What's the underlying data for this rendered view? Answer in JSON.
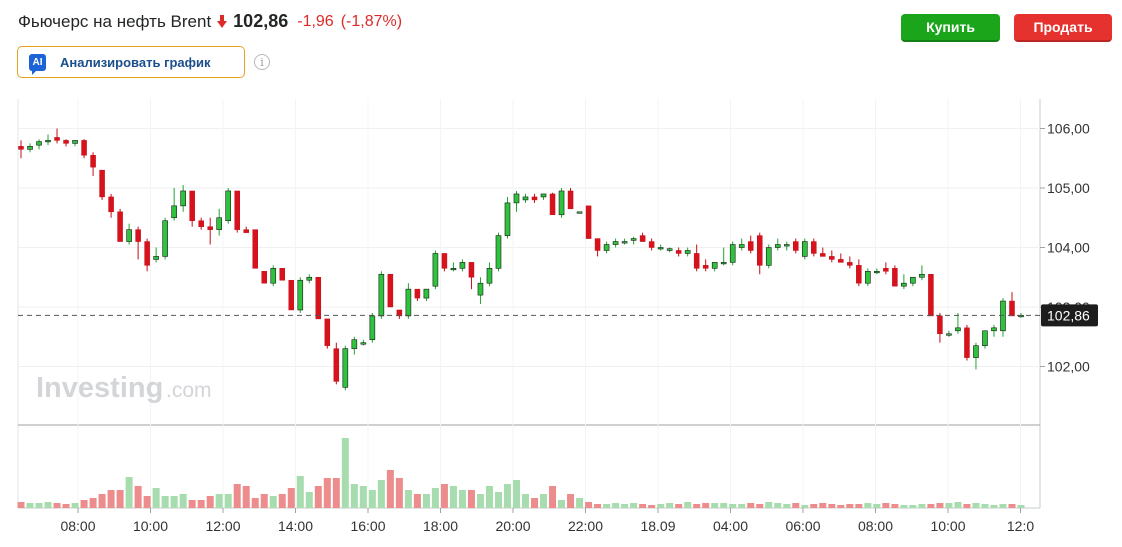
{
  "header": {
    "title": "Фьючерс на нефть Brent",
    "price": "102,86",
    "change": "-1,96",
    "change_pct": "(-1,87%)",
    "direction_icon": "down-arrow-icon"
  },
  "actions": {
    "buy_label": "Купить",
    "sell_label": "Продать"
  },
  "analyze": {
    "badge": "AI",
    "label": "Анализировать график",
    "info_icon": "info-icon"
  },
  "watermark": {
    "brand": "Investing",
    "suffix": ".com"
  },
  "colors": {
    "up": "#21a530",
    "up_fill": "#2fc23d",
    "down": "#c40d17",
    "down_fill": "#d8121c",
    "vol_up": "#a6dcae",
    "vol_down": "#ec8c8c"
  },
  "chart_data": {
    "type": "candlestick",
    "y_ticks": [
      "106,00",
      "105,00",
      "104,00",
      "103,00",
      "102,00"
    ],
    "y_tick_values": [
      106,
      105,
      104,
      103,
      102
    ],
    "x_labels": [
      "08:00",
      "10:00",
      "12:00",
      "14:00",
      "16:00",
      "18:00",
      "20:00",
      "22:00",
      "18.09",
      "04:00",
      "06:00",
      "08:00",
      "10:00",
      "12:0"
    ],
    "ylim": [
      101.2,
      106.5
    ],
    "last_price_label": "102,86",
    "last_price": 102.86,
    "candles": [
      [
        105.7,
        105.8,
        105.5,
        105.65
      ],
      [
        105.65,
        105.75,
        105.6,
        105.7
      ],
      [
        105.72,
        105.82,
        105.65,
        105.78
      ],
      [
        105.78,
        105.9,
        105.72,
        105.8
      ],
      [
        105.85,
        106.0,
        105.75,
        105.8
      ],
      [
        105.8,
        105.82,
        105.7,
        105.75
      ],
      [
        105.75,
        105.8,
        105.7,
        105.8
      ],
      [
        105.8,
        105.82,
        105.5,
        105.55
      ],
      [
        105.55,
        105.6,
        105.2,
        105.35
      ],
      [
        105.3,
        105.3,
        104.8,
        104.85
      ],
      [
        104.85,
        104.9,
        104.5,
        104.6
      ],
      [
        104.6,
        104.65,
        104.1,
        104.1
      ],
      [
        104.1,
        104.4,
        104.05,
        104.3
      ],
      [
        104.3,
        104.35,
        103.8,
        104.1
      ],
      [
        104.1,
        104.15,
        103.6,
        103.7
      ],
      [
        103.8,
        104.0,
        103.75,
        103.85
      ],
      [
        103.85,
        104.5,
        103.8,
        104.45
      ],
      [
        104.5,
        105.0,
        104.45,
        104.7
      ],
      [
        104.7,
        105.05,
        104.6,
        104.95
      ],
      [
        104.95,
        104.95,
        104.35,
        104.45
      ],
      [
        104.45,
        104.5,
        104.3,
        104.35
      ],
      [
        104.35,
        104.5,
        104.05,
        104.3
      ],
      [
        104.3,
        104.65,
        104.2,
        104.5
      ],
      [
        104.45,
        105.0,
        104.4,
        104.95
      ],
      [
        104.95,
        104.95,
        104.25,
        104.3
      ],
      [
        104.3,
        104.35,
        104.25,
        104.25
      ],
      [
        104.3,
        104.3,
        103.65,
        103.65
      ],
      [
        103.6,
        103.6,
        103.4,
        103.4
      ],
      [
        103.4,
        103.7,
        103.35,
        103.65
      ],
      [
        103.65,
        103.65,
        103.45,
        103.45
      ],
      [
        103.45,
        103.45,
        102.95,
        102.95
      ],
      [
        102.95,
        103.5,
        102.9,
        103.45
      ],
      [
        103.45,
        103.55,
        103.4,
        103.5
      ],
      [
        103.5,
        103.5,
        102.8,
        102.8
      ],
      [
        102.8,
        102.8,
        102.3,
        102.35
      ],
      [
        102.3,
        102.4,
        101.7,
        101.75
      ],
      [
        101.65,
        102.35,
        101.6,
        102.3
      ],
      [
        102.3,
        102.5,
        102.2,
        102.45
      ],
      [
        102.4,
        102.45,
        102.35,
        102.4
      ],
      [
        102.45,
        102.9,
        102.4,
        102.85
      ],
      [
        102.85,
        103.6,
        102.8,
        103.55
      ],
      [
        103.55,
        103.55,
        103.0,
        103.0
      ],
      [
        102.95,
        102.95,
        102.8,
        102.85
      ],
      [
        102.85,
        103.4,
        102.8,
        103.3
      ],
      [
        103.3,
        103.3,
        103.1,
        103.15
      ],
      [
        103.15,
        103.3,
        103.1,
        103.3
      ],
      [
        103.35,
        103.95,
        103.3,
        103.9
      ],
      [
        103.9,
        103.9,
        103.6,
        103.65
      ],
      [
        103.65,
        103.75,
        103.6,
        103.65
      ],
      [
        103.65,
        103.8,
        103.6,
        103.75
      ],
      [
        103.75,
        103.75,
        103.3,
        103.5
      ],
      [
        103.2,
        103.5,
        103.05,
        103.4
      ],
      [
        103.4,
        103.75,
        103.35,
        103.65
      ],
      [
        103.65,
        104.25,
        103.6,
        104.2
      ],
      [
        104.2,
        104.85,
        104.15,
        104.75
      ],
      [
        104.75,
        104.95,
        104.6,
        104.9
      ],
      [
        104.8,
        104.9,
        104.75,
        104.85
      ],
      [
        104.85,
        104.9,
        104.75,
        104.8
      ],
      [
        104.85,
        104.9,
        104.8,
        104.9
      ],
      [
        104.9,
        104.92,
        104.55,
        104.55
      ],
      [
        104.55,
        105.0,
        104.5,
        104.95
      ],
      [
        104.95,
        105.0,
        104.65,
        104.65
      ],
      [
        104.6,
        104.6,
        104.6,
        104.6
      ],
      [
        104.7,
        104.7,
        104.15,
        104.15
      ],
      [
        104.15,
        104.15,
        103.85,
        103.95
      ],
      [
        103.95,
        104.1,
        103.9,
        104.05
      ],
      [
        104.05,
        104.15,
        104.0,
        104.1
      ],
      [
        104.1,
        104.15,
        104.05,
        104.1
      ],
      [
        104.12,
        104.18,
        104.05,
        104.15
      ],
      [
        104.2,
        104.25,
        104.1,
        104.1
      ],
      [
        104.1,
        104.15,
        103.95,
        104.0
      ],
      [
        104.0,
        104.05,
        103.95,
        104.0
      ],
      [
        103.95,
        104.0,
        103.92,
        103.98
      ],
      [
        103.95,
        104.0,
        103.85,
        103.9
      ],
      [
        103.9,
        104.0,
        103.85,
        103.95
      ],
      [
        103.9,
        104.05,
        103.6,
        103.65
      ],
      [
        103.7,
        103.8,
        103.6,
        103.65
      ],
      [
        103.65,
        103.75,
        103.6,
        103.75
      ],
      [
        103.75,
        104.0,
        103.7,
        103.75
      ],
      [
        103.75,
        104.1,
        103.7,
        104.05
      ],
      [
        104.0,
        104.15,
        103.95,
        104.05
      ],
      [
        104.1,
        104.2,
        103.9,
        103.95
      ],
      [
        104.2,
        104.25,
        103.55,
        103.7
      ],
      [
        103.7,
        104.05,
        103.65,
        104.0
      ],
      [
        104.0,
        104.15,
        103.95,
        104.05
      ],
      [
        104.05,
        104.1,
        103.95,
        104.05
      ],
      [
        104.1,
        104.15,
        103.9,
        103.95
      ],
      [
        103.85,
        104.15,
        103.8,
        104.1
      ],
      [
        104.1,
        104.15,
        103.85,
        103.9
      ],
      [
        103.9,
        104.0,
        103.85,
        103.85
      ],
      [
        103.85,
        103.95,
        103.75,
        103.8
      ],
      [
        103.8,
        103.9,
        103.75,
        103.75
      ],
      [
        103.75,
        103.85,
        103.65,
        103.7
      ],
      [
        103.7,
        103.8,
        103.35,
        103.4
      ],
      [
        103.4,
        103.65,
        103.35,
        103.6
      ],
      [
        103.6,
        103.65,
        103.55,
        103.6
      ],
      [
        103.65,
        103.75,
        103.55,
        103.6
      ],
      [
        103.65,
        103.7,
        103.35,
        103.35
      ],
      [
        103.35,
        103.55,
        103.3,
        103.4
      ],
      [
        103.4,
        103.5,
        103.35,
        103.5
      ],
      [
        103.5,
        103.7,
        103.45,
        103.55
      ],
      [
        103.55,
        103.55,
        102.85,
        102.85
      ],
      [
        102.85,
        102.9,
        102.4,
        102.55
      ],
      [
        102.55,
        102.6,
        102.5,
        102.55
      ],
      [
        102.6,
        102.9,
        102.55,
        102.65
      ],
      [
        102.65,
        102.7,
        102.1,
        102.15
      ],
      [
        102.15,
        102.4,
        101.95,
        102.35
      ],
      [
        102.35,
        102.6,
        102.3,
        102.6
      ],
      [
        102.6,
        102.7,
        102.5,
        102.65
      ],
      [
        102.6,
        103.15,
        102.5,
        103.1
      ],
      [
        103.1,
        103.25,
        102.85,
        102.85
      ],
      [
        102.85,
        102.9,
        102.82,
        102.86
      ]
    ],
    "volume": [
      6,
      5,
      5,
      6,
      5,
      4,
      5,
      8,
      10,
      14,
      18,
      18,
      31,
      22,
      12,
      20,
      12,
      12,
      14,
      8,
      8,
      12,
      14,
      14,
      24,
      22,
      10,
      14,
      12,
      14,
      20,
      32,
      16,
      22,
      30,
      30,
      70,
      24,
      22,
      18,
      28,
      38,
      30,
      18,
      14,
      14,
      20,
      24,
      22,
      18,
      18,
      14,
      22,
      16,
      24,
      28,
      14,
      10,
      14,
      22,
      8,
      14,
      10,
      6,
      4,
      4,
      5,
      4,
      5,
      4,
      3,
      4,
      5,
      4,
      6,
      4,
      5,
      5,
      5,
      4,
      4,
      5,
      4,
      6,
      5,
      4,
      5,
      3,
      4,
      5,
      4,
      3,
      4,
      4,
      5,
      4,
      5,
      4,
      3,
      3,
      4,
      4,
      5,
      5,
      6,
      4,
      5,
      4,
      3,
      4,
      4,
      3
    ]
  }
}
